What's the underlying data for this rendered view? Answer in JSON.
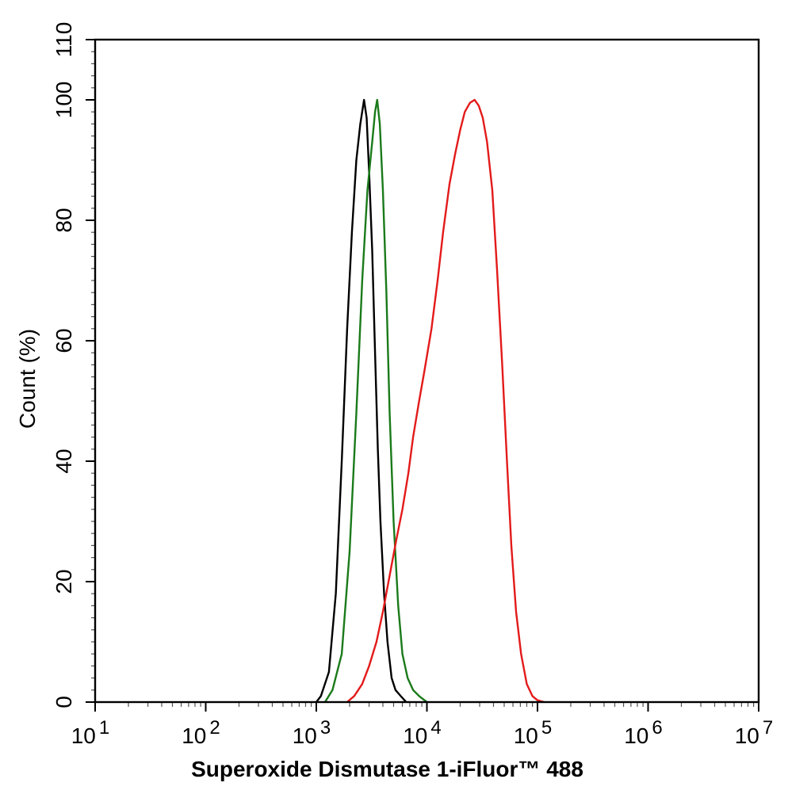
{
  "chart_data": {
    "type": "line",
    "title": "",
    "xlabel": "Superoxide Dismutase 1-iFluor™ 488",
    "ylabel": "Count  (%)",
    "xscale": "log",
    "xlim": [
      10,
      10000000
    ],
    "ylim": [
      0,
      110
    ],
    "x_ticks": [
      {
        "base": "10",
        "exp": "1"
      },
      {
        "base": "10",
        "exp": "2"
      },
      {
        "base": "10",
        "exp": "3"
      },
      {
        "base": "10",
        "exp": "4"
      },
      {
        "base": "10",
        "exp": "5"
      },
      {
        "base": "10",
        "exp": "6"
      },
      {
        "base": "10",
        "exp": "7"
      }
    ],
    "y_ticks": [
      "0",
      "20",
      "40",
      "60",
      "80",
      "100",
      "110"
    ],
    "grid": false,
    "legend": "none",
    "series": [
      {
        "color": "#000000",
        "points": [
          [
            1000,
            0
          ],
          [
            1100,
            1
          ],
          [
            1300,
            5
          ],
          [
            1500,
            18
          ],
          [
            1700,
            40
          ],
          [
            1900,
            62
          ],
          [
            2100,
            78
          ],
          [
            2300,
            90
          ],
          [
            2500,
            96
          ],
          [
            2700,
            100
          ],
          [
            2850,
            97
          ],
          [
            3000,
            88
          ],
          [
            3200,
            75
          ],
          [
            3400,
            58
          ],
          [
            3600,
            42
          ],
          [
            3800,
            30
          ],
          [
            4100,
            18
          ],
          [
            4400,
            10
          ],
          [
            4800,
            4
          ],
          [
            5200,
            2
          ],
          [
            5800,
            1
          ],
          [
            6500,
            0
          ]
        ]
      },
      {
        "color": "#1a7a1a",
        "points": [
          [
            1200,
            0
          ],
          [
            1400,
            2
          ],
          [
            1700,
            8
          ],
          [
            2000,
            25
          ],
          [
            2300,
            48
          ],
          [
            2600,
            70
          ],
          [
            2900,
            85
          ],
          [
            3200,
            93
          ],
          [
            3400,
            98
          ],
          [
            3550,
            100
          ],
          [
            3750,
            96
          ],
          [
            4000,
            85
          ],
          [
            4300,
            68
          ],
          [
            4600,
            48
          ],
          [
            5000,
            30
          ],
          [
            5500,
            16
          ],
          [
            6000,
            8
          ],
          [
            6700,
            4
          ],
          [
            7500,
            2
          ],
          [
            8500,
            1
          ],
          [
            10000,
            0
          ]
        ]
      },
      {
        "color": "#e31a1a",
        "points": [
          [
            1900,
            0
          ],
          [
            2200,
            1
          ],
          [
            2600,
            3
          ],
          [
            3000,
            6
          ],
          [
            3500,
            10
          ],
          [
            4000,
            15
          ],
          [
            4600,
            21
          ],
          [
            5300,
            27
          ],
          [
            6000,
            32
          ],
          [
            6800,
            38
          ],
          [
            7500,
            44
          ],
          [
            8500,
            50
          ],
          [
            9500,
            55
          ],
          [
            11000,
            62
          ],
          [
            12500,
            70
          ],
          [
            14000,
            78
          ],
          [
            16000,
            86
          ],
          [
            18000,
            91
          ],
          [
            20000,
            95
          ],
          [
            22000,
            98
          ],
          [
            24500,
            99.5
          ],
          [
            27000,
            100
          ],
          [
            29500,
            99
          ],
          [
            32000,
            97
          ],
          [
            35000,
            93
          ],
          [
            39000,
            85
          ],
          [
            43000,
            72
          ],
          [
            48000,
            56
          ],
          [
            53000,
            40
          ],
          [
            58000,
            26
          ],
          [
            64000,
            15
          ],
          [
            71000,
            8
          ],
          [
            80000,
            3
          ],
          [
            90000,
            1
          ],
          [
            100000,
            0.3
          ],
          [
            115000,
            0
          ]
        ]
      }
    ]
  }
}
